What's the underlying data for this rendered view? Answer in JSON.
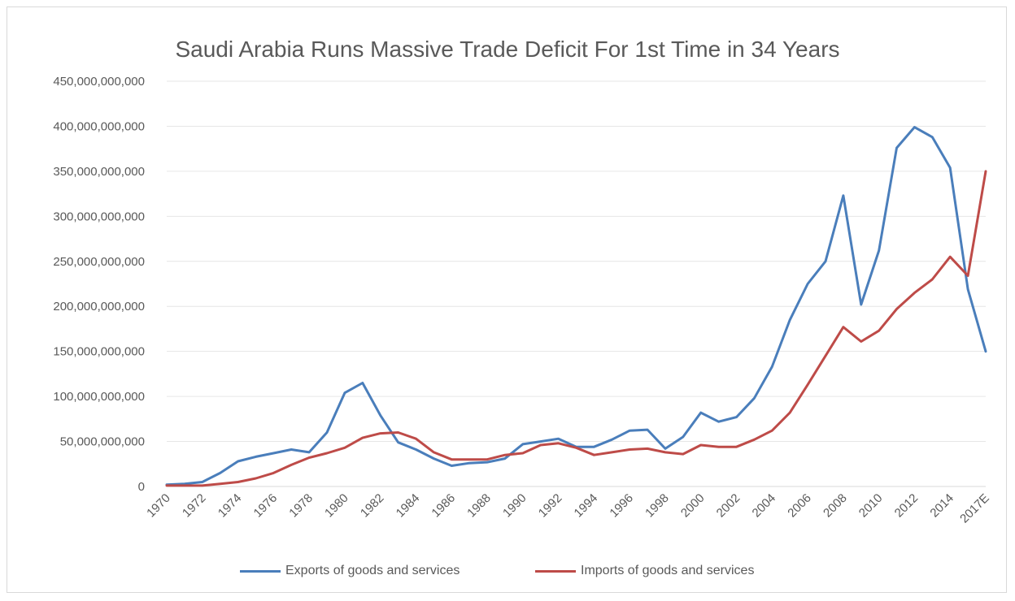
{
  "chart_data": {
    "type": "line",
    "title": "Saudi Arabia Runs Massive Trade Deficit For 1st Time in 34 Years",
    "xlabel": "",
    "ylabel": "",
    "ylim": [
      0,
      450000000000
    ],
    "yticks": [
      0,
      50000000000,
      100000000000,
      150000000000,
      200000000000,
      250000000000,
      300000000000,
      350000000000,
      400000000000,
      450000000000
    ],
    "ytick_labels": [
      "0",
      "50,000,000,000",
      "100,000,000,000",
      "150,000,000,000",
      "200,000,000,000",
      "250,000,000,000",
      "300,000,000,000",
      "350,000,000,000",
      "400,000,000,000",
      "450,000,000,000"
    ],
    "categories": [
      "1970",
      "1971",
      "1972",
      "1973",
      "1974",
      "1975",
      "1976",
      "1977",
      "1978",
      "1979",
      "1980",
      "1981",
      "1982",
      "1983",
      "1984",
      "1985",
      "1986",
      "1987",
      "1988",
      "1989",
      "1990",
      "1991",
      "1992",
      "1993",
      "1994",
      "1995",
      "1996",
      "1997",
      "1998",
      "1999",
      "2000",
      "2001",
      "2002",
      "2003",
      "2004",
      "2005",
      "2006",
      "2007",
      "2008",
      "2009",
      "2010",
      "2011",
      "2012",
      "2013",
      "2014",
      "2015",
      "2017E"
    ],
    "xtick_labels": [
      "1970",
      "1972",
      "1974",
      "1976",
      "1978",
      "1980",
      "1982",
      "1984",
      "1986",
      "1988",
      "1990",
      "1992",
      "1994",
      "1996",
      "1998",
      "2000",
      "2002",
      "2004",
      "2006",
      "2008",
      "2010",
      "2012",
      "2014",
      "2017E"
    ],
    "grid": true,
    "legend_position": "bottom",
    "series": [
      {
        "name": "Exports of goods and services",
        "color": "#4a7ebb",
        "values": [
          2000000000,
          3000000000,
          5000000000,
          15000000000,
          28000000000,
          33000000000,
          37000000000,
          41000000000,
          38000000000,
          60000000000,
          104000000000,
          115000000000,
          79000000000,
          49000000000,
          41000000000,
          31000000000,
          23000000000,
          26000000000,
          27000000000,
          31000000000,
          47000000000,
          50000000000,
          53000000000,
          44000000000,
          44000000000,
          52000000000,
          62000000000,
          63000000000,
          42000000000,
          55000000000,
          82000000000,
          72000000000,
          77000000000,
          98000000000,
          133000000000,
          185000000000,
          225000000000,
          250000000000,
          323000000000,
          202000000000,
          262000000000,
          376000000000,
          399000000000,
          388000000000,
          354000000000,
          219000000000,
          150000000000
        ]
      },
      {
        "name": "Imports of goods and services",
        "color": "#be4b48",
        "values": [
          1000000000,
          1000000000,
          1000000000,
          3000000000,
          5000000000,
          9000000000,
          15000000000,
          24000000000,
          32000000000,
          37000000000,
          43000000000,
          54000000000,
          59000000000,
          60000000000,
          53000000000,
          38000000000,
          30000000000,
          30000000000,
          30000000000,
          35000000000,
          37000000000,
          46000000000,
          48000000000,
          43000000000,
          35000000000,
          38000000000,
          41000000000,
          42000000000,
          38000000000,
          36000000000,
          46000000000,
          44000000000,
          44000000000,
          52000000000,
          62000000000,
          82000000000,
          113000000000,
          145000000000,
          177000000000,
          161000000000,
          173000000000,
          197000000000,
          215000000000,
          230000000000,
          255000000000,
          234000000000,
          350000000000
        ]
      }
    ]
  }
}
